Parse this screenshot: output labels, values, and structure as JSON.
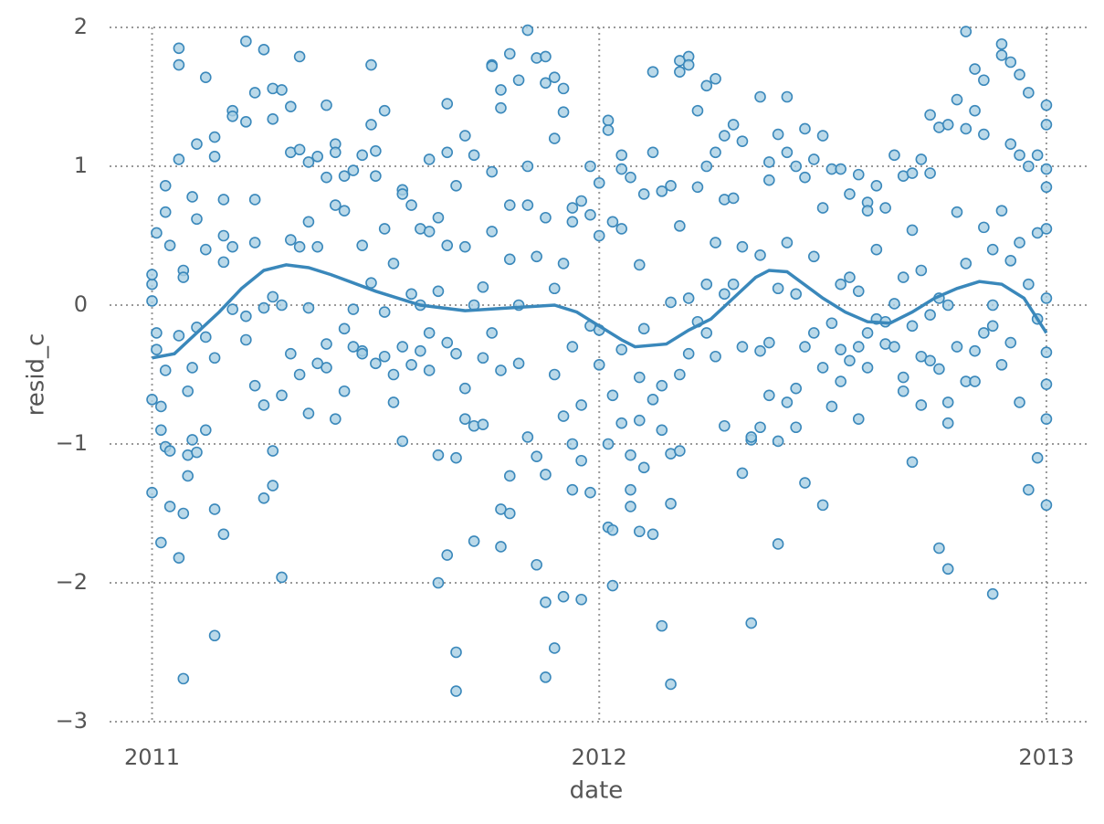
{
  "chart_data": {
    "type": "scatter",
    "xlabel": "date",
    "ylabel": "resid_c",
    "xlim": [
      2010.905,
      2013.09
    ],
    "ylim": [
      -3,
      2
    ],
    "xticks": [
      2011,
      2012,
      2013
    ],
    "yticks": [
      {
        "value": -3,
        "label": "−3"
      },
      {
        "value": -2,
        "label": "−2"
      },
      {
        "value": -1,
        "label": "−1"
      },
      0,
      1,
      2
    ],
    "grid": true,
    "color": "#3a88bb",
    "fill": "#a9cfe3",
    "x": [
      2011.0,
      2011.0,
      2011.0,
      2011.0,
      2011.0,
      2011.01,
      2011.01,
      2011.01,
      2011.02,
      2011.02,
      2011.02,
      2011.03,
      2011.03,
      2011.03,
      2011.03,
      2011.04,
      2011.04,
      2011.04,
      2011.06,
      2011.06,
      2011.06,
      2011.06,
      2011.06,
      2011.07,
      2011.07,
      2011.07,
      2011.07,
      2011.08,
      2011.08,
      2011.08,
      2011.09,
      2011.09,
      2011.09,
      2011.1,
      2011.1,
      2011.1,
      2011.1,
      2011.12,
      2011.12,
      2011.12,
      2011.12,
      2011.14,
      2011.14,
      2011.14,
      2011.14,
      2011.14,
      2011.16,
      2011.16,
      2011.16,
      2011.16,
      2011.18,
      2011.18,
      2011.18,
      2011.18,
      2011.21,
      2011.21,
      2011.21,
      2011.21,
      2011.23,
      2011.23,
      2011.23,
      2011.23,
      2011.25,
      2011.25,
      2011.25,
      2011.25,
      2011.27,
      2011.27,
      2011.27,
      2011.27,
      2011.27,
      2011.29,
      2011.29,
      2011.29,
      2011.29,
      2011.31,
      2011.31,
      2011.31,
      2011.31,
      2011.33,
      2011.33,
      2011.33,
      2011.33,
      2011.35,
      2011.35,
      2011.35,
      2011.35,
      2011.37,
      2011.37,
      2011.37,
      2011.39,
      2011.39,
      2011.39,
      2011.39,
      2011.41,
      2011.41,
      2011.41,
      2011.41,
      2011.43,
      2011.43,
      2011.43,
      2011.43,
      2011.45,
      2011.45,
      2011.45,
      2011.47,
      2011.47,
      2011.47,
      2011.47,
      2011.49,
      2011.49,
      2011.49,
      2011.5,
      2011.5,
      2011.5,
      2011.52,
      2011.52,
      2011.52,
      2011.52,
      2011.54,
      2011.54,
      2011.54,
      2011.56,
      2011.56,
      2011.56,
      2011.56,
      2011.58,
      2011.58,
      2011.58,
      2011.6,
      2011.6,
      2011.6,
      2011.62,
      2011.62,
      2011.62,
      2011.62,
      2011.64,
      2011.64,
      2011.64,
      2011.64,
      2011.66,
      2011.66,
      2011.66,
      2011.66,
      2011.66,
      2011.68,
      2011.68,
      2011.68,
      2011.68,
      2011.68,
      2011.7,
      2011.7,
      2011.7,
      2011.7,
      2011.72,
      2011.72,
      2011.72,
      2011.72,
      2011.74,
      2011.74,
      2011.74,
      2011.76,
      2011.76,
      2011.76,
      2011.76,
      2011.76,
      2011.78,
      2011.78,
      2011.78,
      2011.78,
      2011.78,
      2011.8,
      2011.8,
      2011.8,
      2011.8,
      2011.8,
      2011.82,
      2011.82,
      2011.82,
      2011.84,
      2011.84,
      2011.84,
      2011.84,
      2011.86,
      2011.86,
      2011.86,
      2011.86,
      2011.88,
      2011.88,
      2011.88,
      2011.88,
      2011.88,
      2011.88,
      2011.9,
      2011.9,
      2011.9,
      2011.9,
      2011.9,
      2011.92,
      2011.92,
      2011.92,
      2011.92,
      2011.92,
      2011.94,
      2011.94,
      2011.94,
      2011.94,
      2011.94,
      2011.96,
      2011.96,
      2011.96,
      2011.96,
      2011.98,
      2011.98,
      2011.98,
      2011.98,
      2012.0,
      2012.0,
      2012.0,
      2012.0,
      2012.02,
      2012.02,
      2012.02,
      2012.02,
      2012.03,
      2012.03,
      2012.03,
      2012.03,
      2012.05,
      2012.05,
      2012.05,
      2012.05,
      2012.05,
      2012.07,
      2012.07,
      2012.07,
      2012.07,
      2012.09,
      2012.09,
      2012.09,
      2012.09,
      2012.1,
      2012.1,
      2012.1,
      2012.12,
      2012.12,
      2012.12,
      2012.12,
      2012.14,
      2012.14,
      2012.14,
      2012.14,
      2012.16,
      2012.16,
      2012.16,
      2012.16,
      2012.16,
      2012.18,
      2012.18,
      2012.18,
      2012.18,
      2012.18,
      2012.2,
      2012.2,
      2012.2,
      2012.2,
      2012.22,
      2012.22,
      2012.22,
      2012.24,
      2012.24,
      2012.24,
      2012.24,
      2012.26,
      2012.26,
      2012.26,
      2012.26,
      2012.28,
      2012.28,
      2012.28,
      2012.28,
      2012.3,
      2012.3,
      2012.3,
      2012.32,
      2012.32,
      2012.32,
      2012.32,
      2012.34,
      2012.34,
      2012.34,
      2012.36,
      2012.36,
      2012.36,
      2012.36,
      2012.38,
      2012.38,
      2012.38,
      2012.38,
      2012.4,
      2012.4,
      2012.4,
      2012.4,
      2012.42,
      2012.42,
      2012.42,
      2012.42,
      2012.44,
      2012.44,
      2012.44,
      2012.44,
      2012.46,
      2012.46,
      2012.46,
      2012.46,
      2012.48,
      2012.48,
      2012.48,
      2012.5,
      2012.5,
      2012.5,
      2012.5,
      2012.52,
      2012.52,
      2012.52,
      2012.54,
      2012.54,
      2012.54,
      2012.54,
      2012.56,
      2012.56,
      2012.56,
      2012.58,
      2012.58,
      2012.58,
      2012.58,
      2012.6,
      2012.6,
      2012.6,
      2012.6,
      2012.62,
      2012.62,
      2012.62,
      2012.64,
      2012.64,
      2012.64,
      2012.66,
      2012.66,
      2012.66,
      2012.68,
      2012.68,
      2012.68,
      2012.68,
      2012.7,
      2012.7,
      2012.7,
      2012.7,
      2012.72,
      2012.72,
      2012.72,
      2012.72,
      2012.74,
      2012.74,
      2012.74,
      2012.74,
      2012.76,
      2012.76,
      2012.76,
      2012.76,
      2012.78,
      2012.78,
      2012.78,
      2012.78,
      2012.78,
      2012.8,
      2012.8,
      2012.8,
      2012.82,
      2012.82,
      2012.82,
      2012.82,
      2012.84,
      2012.84,
      2012.84,
      2012.84,
      2012.86,
      2012.86,
      2012.86,
      2012.86,
      2012.88,
      2012.88,
      2012.88,
      2012.88,
      2012.9,
      2012.9,
      2012.9,
      2012.9,
      2012.92,
      2012.92,
      2012.92,
      2012.92,
      2012.94,
      2012.94,
      2012.94,
      2012.94,
      2012.96,
      2012.96,
      2012.96,
      2012.96,
      2012.98,
      2012.98,
      2012.98,
      2012.98,
      2013.0,
      2013.0,
      2013.0,
      2013.0,
      2013.0,
      2013.0,
      2013.0,
      2013.0,
      2013.0,
      2013.0
    ],
    "values": [
      0.15,
      0.22,
      -1.35,
      0.03,
      -0.68,
      -0.32,
      0.52,
      -0.2,
      -0.73,
      -0.9,
      -1.71,
      -1.02,
      0.67,
      0.86,
      -0.47,
      0.43,
      -1.45,
      -1.05,
      1.85,
      1.73,
      1.05,
      -0.22,
      -1.82,
      -2.69,
      -1.5,
      0.25,
      0.2,
      -1.08,
      -1.23,
      -0.62,
      0.78,
      -0.97,
      -0.45,
      1.16,
      0.62,
      -0.16,
      -1.06,
      -0.9,
      -0.23,
      1.64,
      0.4,
      1.21,
      1.07,
      -1.47,
      -2.38,
      -0.38,
      0.76,
      0.31,
      -1.65,
      0.5,
      1.4,
      1.36,
      0.42,
      -0.03,
      1.9,
      1.32,
      -0.08,
      -0.25,
      0.76,
      1.53,
      -0.58,
      0.45,
      1.84,
      -0.02,
      -0.72,
      -1.39,
      1.56,
      1.34,
      0.06,
      -1.05,
      -1.3,
      1.55,
      -1.96,
      0.0,
      -0.65,
      1.43,
      0.47,
      -0.35,
      1.1,
      1.79,
      0.42,
      1.12,
      -0.5,
      1.03,
      0.6,
      -0.02,
      -0.78,
      1.07,
      0.42,
      -0.42,
      1.44,
      0.92,
      -0.45,
      -0.28,
      1.16,
      0.72,
      -0.82,
      1.1,
      0.93,
      -0.62,
      -0.17,
      0.68,
      0.97,
      -0.3,
      -0.03,
      1.08,
      -0.33,
      0.43,
      -0.35,
      1.73,
      1.3,
      0.16,
      1.11,
      0.93,
      -0.42,
      1.4,
      0.55,
      -0.37,
      -0.05,
      0.3,
      -0.5,
      -0.7,
      0.83,
      0.8,
      -0.3,
      -0.98,
      0.72,
      0.08,
      -0.43,
      0.55,
      0.0,
      -0.33,
      1.05,
      0.53,
      -0.2,
      -0.47,
      0.63,
      0.1,
      -2.0,
      -1.08,
      1.45,
      1.1,
      0.43,
      -0.27,
      -1.8,
      -2.78,
      -2.5,
      0.86,
      -1.1,
      -0.35,
      1.22,
      0.42,
      -0.82,
      -0.6,
      1.08,
      -0.87,
      -1.7,
      0.0,
      0.13,
      -0.38,
      -0.86,
      1.73,
      1.72,
      0.96,
      0.53,
      -0.2,
      1.55,
      1.42,
      -0.47,
      -1.47,
      -1.74,
      1.81,
      0.72,
      0.33,
      -1.23,
      -1.5,
      1.62,
      0.0,
      -0.42,
      1.98,
      1.0,
      0.72,
      -0.95,
      1.78,
      0.35,
      -1.87,
      -1.09,
      1.79,
      1.6,
      0.63,
      -2.14,
      -2.68,
      -1.22,
      1.64,
      1.2,
      0.12,
      -0.5,
      -2.47,
      1.56,
      1.39,
      0.3,
      -0.8,
      -2.1,
      0.7,
      0.6,
      -0.3,
      -1.0,
      -1.33,
      0.75,
      -0.72,
      -1.12,
      -2.12,
      1.0,
      0.65,
      -1.35,
      -0.15,
      0.5,
      0.88,
      -0.18,
      -0.43,
      1.33,
      1.26,
      -1.0,
      -1.6,
      0.6,
      -0.65,
      -2.02,
      -1.62,
      1.08,
      0.98,
      0.55,
      -0.32,
      -0.85,
      0.92,
      -1.08,
      -1.33,
      -1.45,
      0.29,
      -0.83,
      -1.63,
      -0.52,
      0.8,
      -0.17,
      -1.17,
      1.68,
      1.1,
      -0.68,
      -1.65,
      0.82,
      -0.58,
      -0.9,
      -2.31,
      0.86,
      0.02,
      -1.07,
      -1.43,
      -2.73,
      1.76,
      1.68,
      0.57,
      -0.5,
      -1.05,
      1.79,
      1.73,
      0.05,
      -0.35,
      1.4,
      0.85,
      -0.12,
      1.58,
      1.0,
      0.15,
      -0.2,
      1.63,
      1.1,
      0.45,
      -0.37,
      1.22,
      0.76,
      0.08,
      -0.87,
      1.3,
      0.77,
      0.15,
      1.18,
      0.42,
      -0.3,
      -1.21,
      -2.29,
      -0.97,
      -0.95,
      1.5,
      0.36,
      -0.33,
      -0.88,
      1.03,
      0.9,
      -0.27,
      -0.65,
      1.23,
      0.12,
      -1.72,
      -0.98,
      1.5,
      1.1,
      0.45,
      -0.7,
      1.0,
      0.08,
      -0.6,
      -0.88,
      1.27,
      0.92,
      -0.3,
      -1.28,
      1.05,
      0.35,
      -0.2,
      1.22,
      0.7,
      -0.45,
      -1.44,
      0.98,
      -0.13,
      -0.73,
      0.98,
      0.15,
      -0.32,
      -0.55,
      0.8,
      0.2,
      -0.4,
      0.94,
      0.1,
      -0.82,
      -0.3,
      0.74,
      0.68,
      -0.45,
      -0.2,
      0.86,
      0.4,
      -0.1,
      0.7,
      -0.12,
      -0.28,
      1.08,
      0.01,
      -0.3,
      0.93,
      0.2,
      -0.52,
      -0.62,
      0.95,
      0.54,
      -0.15,
      -1.13,
      1.05,
      0.25,
      -0.37,
      -0.72,
      1.37,
      0.95,
      -0.07,
      -0.4,
      1.28,
      0.05,
      -1.75,
      -0.46,
      1.3,
      0.0,
      -0.7,
      -0.85,
      -1.9,
      1.48,
      0.67,
      -0.3,
      1.97,
      1.27,
      0.3,
      -0.55,
      1.7,
      1.4,
      -0.55,
      -0.33,
      1.62,
      1.23,
      0.56,
      -0.2,
      -2.08,
      0.4,
      0.0,
      -0.15,
      1.88,
      1.8,
      0.68,
      -0.43,
      1.75,
      1.16,
      0.32,
      -0.27,
      1.66,
      1.08,
      0.45,
      -0.7,
      1.53,
      1.0,
      0.15,
      -1.33,
      1.08,
      0.52,
      -0.1,
      -1.1,
      0.98,
      0.55,
      -0.34,
      -0.82,
      -1.44,
      1.44,
      1.3,
      0.85,
      0.05,
      -0.57
    ],
    "line": {
      "x": [
        2011.0,
        2011.05,
        2011.1,
        2011.15,
        2011.2,
        2011.25,
        2011.3,
        2011.35,
        2011.4,
        2011.5,
        2011.6,
        2011.7,
        2011.8,
        2011.9,
        2011.95,
        2012.0,
        2012.05,
        2012.08,
        2012.15,
        2012.2,
        2012.25,
        2012.3,
        2012.35,
        2012.38,
        2012.42,
        2012.5,
        2012.55,
        2012.6,
        2012.65,
        2012.7,
        2012.75,
        2012.8,
        2012.85,
        2012.9,
        2012.95,
        2013.0
      ],
      "values": [
        -0.38,
        -0.35,
        -0.2,
        -0.05,
        0.12,
        0.25,
        0.29,
        0.27,
        0.22,
        0.1,
        0.0,
        -0.04,
        -0.02,
        0.0,
        -0.05,
        -0.15,
        -0.25,
        -0.3,
        -0.28,
        -0.18,
        -0.1,
        0.05,
        0.2,
        0.25,
        0.24,
        0.05,
        -0.05,
        -0.12,
        -0.13,
        -0.05,
        0.05,
        0.12,
        0.17,
        0.15,
        0.05,
        -0.2
      ]
    }
  }
}
